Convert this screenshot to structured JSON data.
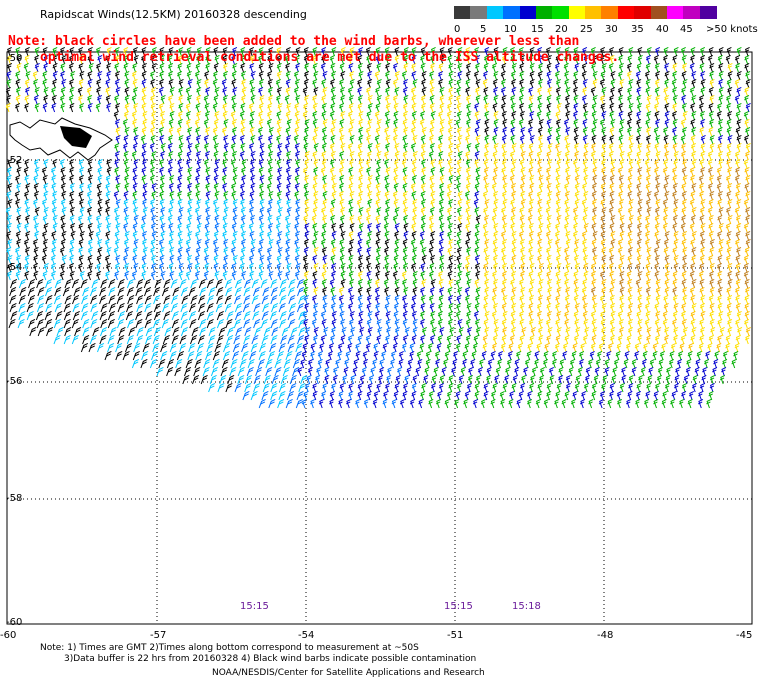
{
  "title": "Rapidscat Winds(12.5KM) 20160328 descending",
  "note_line1": "Note: black circles have been added to the wind barbs, wherever less than",
  "note_line2": "optimal wind retrieval conditions are met due to the ISS altitude changes.",
  "scale": {
    "labels": [
      "0",
      "5",
      "10",
      "15",
      "20",
      "25",
      "30",
      "35",
      "40",
      "45",
      ">50 knots"
    ],
    "colors": [
      "#3a3a3a",
      "#7a7a7a",
      "#00c8ff",
      "#0070ff",
      "#0000d0",
      "#00b000",
      "#00e000",
      "#ffff00",
      "#ffc000",
      "#ff8000",
      "#ff0000",
      "#e00000",
      "#a05020",
      "#ff00ff",
      "#c000c0",
      "#5000a0"
    ]
  },
  "lon_labels": [
    "-60",
    "-57",
    "-54",
    "-51",
    "-48",
    "-45"
  ],
  "lat_labels": [
    "-50",
    "-52",
    "-54",
    "-56",
    "-58",
    "-60"
  ],
  "times": [
    "15:15",
    "15:15",
    "15:18"
  ],
  "footer": {
    "line1": "Note: 1) Times are GMT 2)Times along bottom correspond to measurement at ~50S",
    "line2": "3)Data buffer is 22 hrs from 20160328 4) Black wind barbs indicate possible contamination",
    "line3": "NOAA/NESDIS/Center for Satellite Applications and Research"
  }
}
